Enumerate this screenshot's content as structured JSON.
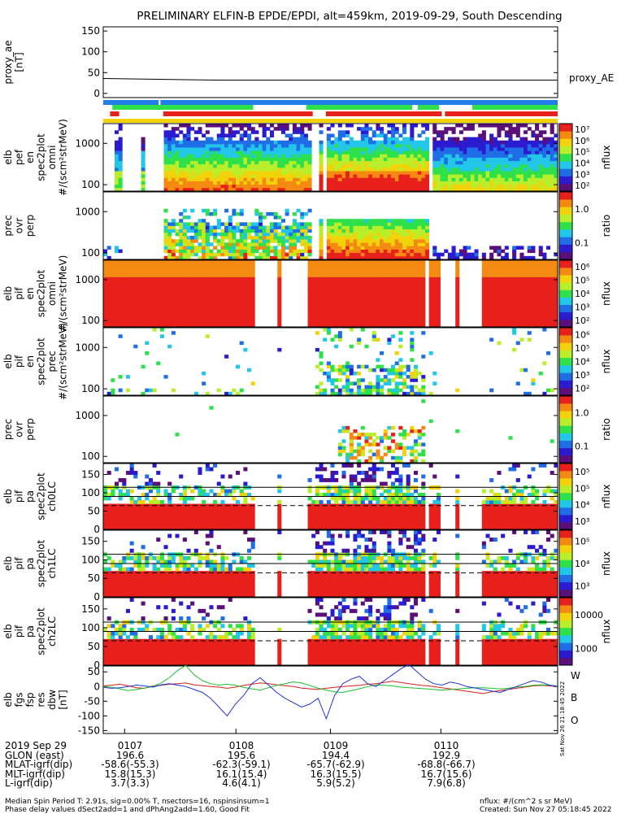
{
  "title": "PRELIMINARY ELFIN-B EPDE/EPDI, alt=459km, 2019-09-29, South Descending",
  "colors": {
    "bar_blue": "#1f7ee8",
    "bar_green": "#2ee04a",
    "bar_red": "#e8201c",
    "bar_yellow": "#f2d20a",
    "line_w": "#d8201c",
    "line_b": "#17c12b",
    "line_o": "#1f33d6"
  },
  "chart_data": [
    {
      "type": "line",
      "id": "proxy_ae",
      "ylabel": "proxy_ae\n[nT]",
      "yticks": [
        0,
        50,
        100,
        150
      ],
      "ylim": [
        -10,
        160
      ],
      "series": [
        {
          "name": "proxy_AE",
          "x": [
            0,
            0.12,
            0.25,
            1.0
          ],
          "values": [
            36,
            34,
            32,
            32
          ]
        }
      ]
    },
    {
      "type": "heatmap",
      "id": "elb_pef_omni",
      "ylabel": "elb\npef\nen\nspec2plot\nomni\n#/(scm²strMeV)",
      "yticks": [
        100,
        1000
      ],
      "colorbar": {
        "label": "nflux",
        "ticks": [
          "10²",
          "10³",
          "10⁴",
          "10⁵",
          "10⁶",
          "10⁷"
        ]
      }
    },
    {
      "type": "heatmap",
      "id": "elb_pef_prec_ovr_perp",
      "ylabel": "prec\novr\nperp",
      "yticks": [
        100,
        1000
      ],
      "colorbar": {
        "label": "ratio",
        "ticks": [
          "0.1",
          "1.0"
        ]
      }
    },
    {
      "type": "heatmap",
      "id": "elb_pif_omni",
      "ylabel": "elb\npif\nen\nspec2plot\nomni\n#/(scm²strMeV)",
      "yticks": [
        100,
        1000
      ],
      "colorbar": {
        "label": "nflux",
        "ticks": [
          "10²",
          "10³",
          "10⁴",
          "10⁵",
          "10⁶"
        ]
      }
    },
    {
      "type": "heatmap",
      "id": "elb_pif_prec",
      "ylabel": "elb\npif\nen\nspec2plot\nprec\n#/(scm²strMeV)",
      "yticks": [
        100,
        1000
      ],
      "colorbar": {
        "label": "nflux",
        "ticks": [
          "10²",
          "10³",
          "10⁴",
          "10⁵",
          "10⁶"
        ]
      }
    },
    {
      "type": "heatmap",
      "id": "elb_pif_prec_ovr_perp",
      "ylabel": "prec\novr\nperp",
      "yticks": [
        100,
        1000
      ],
      "colorbar": {
        "label": "ratio",
        "ticks": [
          "0.1",
          "1.0"
        ]
      }
    },
    {
      "type": "heatmap",
      "id": "elb_pif_pa_ch0LC",
      "ylabel": "elb\npif\npa\nspec2plot\nch0LC",
      "yticks": [
        0,
        50,
        100,
        150
      ],
      "colorbar": {
        "label": "nflux",
        "ticks": [
          "10³",
          "10⁴",
          "10⁵",
          "10⁵"
        ]
      }
    },
    {
      "type": "heatmap",
      "id": "elb_pif_pa_ch1LC",
      "ylabel": "elb\npif\npa\nspec2plot\nch1LC",
      "yticks": [
        0,
        50,
        100,
        150
      ],
      "colorbar": {
        "label": "nflux",
        "ticks": [
          "10³",
          "10⁴",
          "10⁵"
        ]
      }
    },
    {
      "type": "heatmap",
      "id": "elb_pif_pa_ch2LC",
      "ylabel": "elb\npif\npa\nspec2plot\nch2LC",
      "yticks": [
        0,
        50,
        100,
        150
      ],
      "colorbar": {
        "label": "nflux",
        "ticks": [
          "1000",
          "10000"
        ]
      }
    },
    {
      "type": "line",
      "id": "elb_fgs_res",
      "ylabel": "elb\nfgs\nfsp\nres\ndbw\n[nT]",
      "yticks": [
        -150,
        -100,
        -50,
        0,
        50
      ],
      "ylim": [
        -160,
        70
      ],
      "series": [
        {
          "name": "W",
          "values": [
            2,
            5,
            8,
            3,
            -4,
            -6,
            2,
            4,
            8,
            10,
            12,
            6,
            3,
            0,
            -2,
            -6,
            -2,
            4,
            8,
            12,
            10,
            6,
            3,
            0,
            -5,
            -8,
            -10,
            -6,
            -3,
            0,
            2,
            4,
            8,
            10,
            14,
            18,
            14,
            10,
            6,
            3,
            0,
            -4,
            -8,
            -12,
            -16,
            -20,
            -24,
            -18,
            -14,
            -10,
            -6,
            -2,
            2,
            4,
            2,
            0
          ]
        },
        {
          "name": "B",
          "values": [
            0,
            -2,
            -8,
            -14,
            -10,
            -5,
            0,
            12,
            30,
            55,
            72,
            40,
            20,
            10,
            5,
            8,
            4,
            -3,
            -8,
            -12,
            -4,
            4,
            10,
            16,
            12,
            4,
            -6,
            -12,
            -18,
            -20,
            -14,
            -8,
            0,
            6,
            4,
            2,
            -2,
            -4,
            -6,
            -8,
            -10,
            -12,
            -10,
            -8,
            -6,
            -4,
            -4,
            -6,
            -8,
            -6,
            -2,
            0,
            4,
            6,
            4,
            2
          ]
        },
        {
          "name": "O",
          "values": [
            -3,
            -6,
            -4,
            0,
            5,
            2,
            -2,
            6,
            10,
            5,
            0,
            -10,
            -20,
            -40,
            -70,
            -100,
            -60,
            -30,
            10,
            30,
            5,
            -20,
            -40,
            -55,
            -70,
            -60,
            -40,
            -110,
            -30,
            10,
            25,
            35,
            10,
            0,
            20,
            40,
            60,
            75,
            50,
            25,
            10,
            5,
            15,
            10,
            0,
            -5,
            -10,
            -15,
            -20,
            -10,
            0,
            10,
            20,
            15,
            5,
            0
          ]
        }
      ]
    }
  ],
  "bars": {
    "blue": [
      [
        0,
        0.122
      ],
      [
        0.126,
        1.0
      ]
    ],
    "green": [
      [
        0.02,
        0.33
      ],
      [
        0.447,
        0.68
      ],
      [
        0.692,
        0.739
      ],
      [
        0.812,
        1.0
      ]
    ],
    "red": [
      [
        0.015,
        0.035
      ],
      [
        0.132,
        0.461
      ],
      [
        0.49,
        0.745
      ],
      [
        0.752,
        1.0
      ]
    ],
    "yellow": [
      [
        0,
        1.0
      ]
    ]
  },
  "side_label": "Sat Nov 26 21:18:45 2022",
  "time_axis": {
    "rows": [
      {
        "label": "2019 Sep 29",
        "values": [
          "0107",
          "0108",
          "0109",
          "0110"
        ]
      },
      {
        "label": "GLON (east)",
        "values": [
          "196.6",
          "195.6",
          "194.4",
          "192.9"
        ]
      },
      {
        "label": "MLAT-igrf(dip)",
        "values": [
          "-58.6(-55.3)",
          "-62.3(-59.1)",
          "-65.7(-62.9)",
          "-68.8(-66.7)"
        ]
      },
      {
        "label": "MLT-igrf(dip)",
        "values": [
          "15.8(15.3)",
          "16.1(15.4)",
          "16.3(15.5)",
          "16.7(15.6)"
        ]
      },
      {
        "label": "L-igrf(dip)",
        "values": [
          "3.7(3.3)",
          "4.6(4.1)",
          "5.9(5.2)",
          "7.9(6.8)"
        ]
      }
    ]
  },
  "footer": {
    "line1": "Median Spin Period T: 2.91s, sig=0.00% T, nsectors=16, nspinsinsum=1",
    "line2": "Phase delay values dSect2add=1 and dPhAng2add=1.60, Good Fit",
    "units": "nflux: #/(cm^2 s sr MeV)",
    "created": "Created: Sun Nov 27 05:18:45 2022"
  }
}
